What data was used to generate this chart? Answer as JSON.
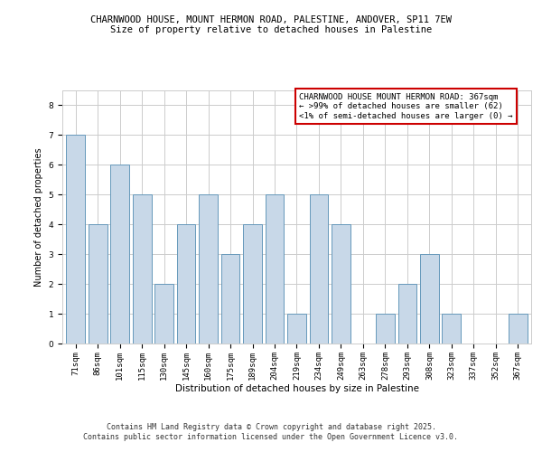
{
  "title1": "CHARNWOOD HOUSE, MOUNT HERMON ROAD, PALESTINE, ANDOVER, SP11 7EW",
  "title2": "Size of property relative to detached houses in Palestine",
  "xlabel": "Distribution of detached houses by size in Palestine",
  "ylabel": "Number of detached properties",
  "categories": [
    "71sqm",
    "86sqm",
    "101sqm",
    "115sqm",
    "130sqm",
    "145sqm",
    "160sqm",
    "175sqm",
    "189sqm",
    "204sqm",
    "219sqm",
    "234sqm",
    "249sqm",
    "263sqm",
    "278sqm",
    "293sqm",
    "308sqm",
    "323sqm",
    "337sqm",
    "352sqm",
    "367sqm"
  ],
  "values": [
    7,
    4,
    6,
    5,
    2,
    4,
    5,
    3,
    4,
    5,
    1,
    5,
    4,
    0,
    1,
    2,
    3,
    1,
    0,
    0,
    1
  ],
  "bar_color": "#c8d8e8",
  "bar_edge_color": "#6699bb",
  "annotation_text": "CHARNWOOD HOUSE MOUNT HERMON ROAD: 367sqm\n← >99% of detached houses are smaller (62)\n<1% of semi-detached houses are larger (0) →",
  "annotation_box_color": "#ffffff",
  "annotation_box_edge_color": "#cc0000",
  "ylim": [
    0,
    8.5
  ],
  "yticks": [
    0,
    1,
    2,
    3,
    4,
    5,
    6,
    7,
    8
  ],
  "grid_color": "#cccccc",
  "background_color": "#ffffff",
  "footer_text": "Contains HM Land Registry data © Crown copyright and database right 2025.\nContains public sector information licensed under the Open Government Licence v3.0.",
  "title1_fontsize": 7.5,
  "title2_fontsize": 7.5,
  "xlabel_fontsize": 7.5,
  "ylabel_fontsize": 7.0,
  "tick_fontsize": 6.5,
  "annotation_fontsize": 6.5,
  "footer_fontsize": 6.0
}
